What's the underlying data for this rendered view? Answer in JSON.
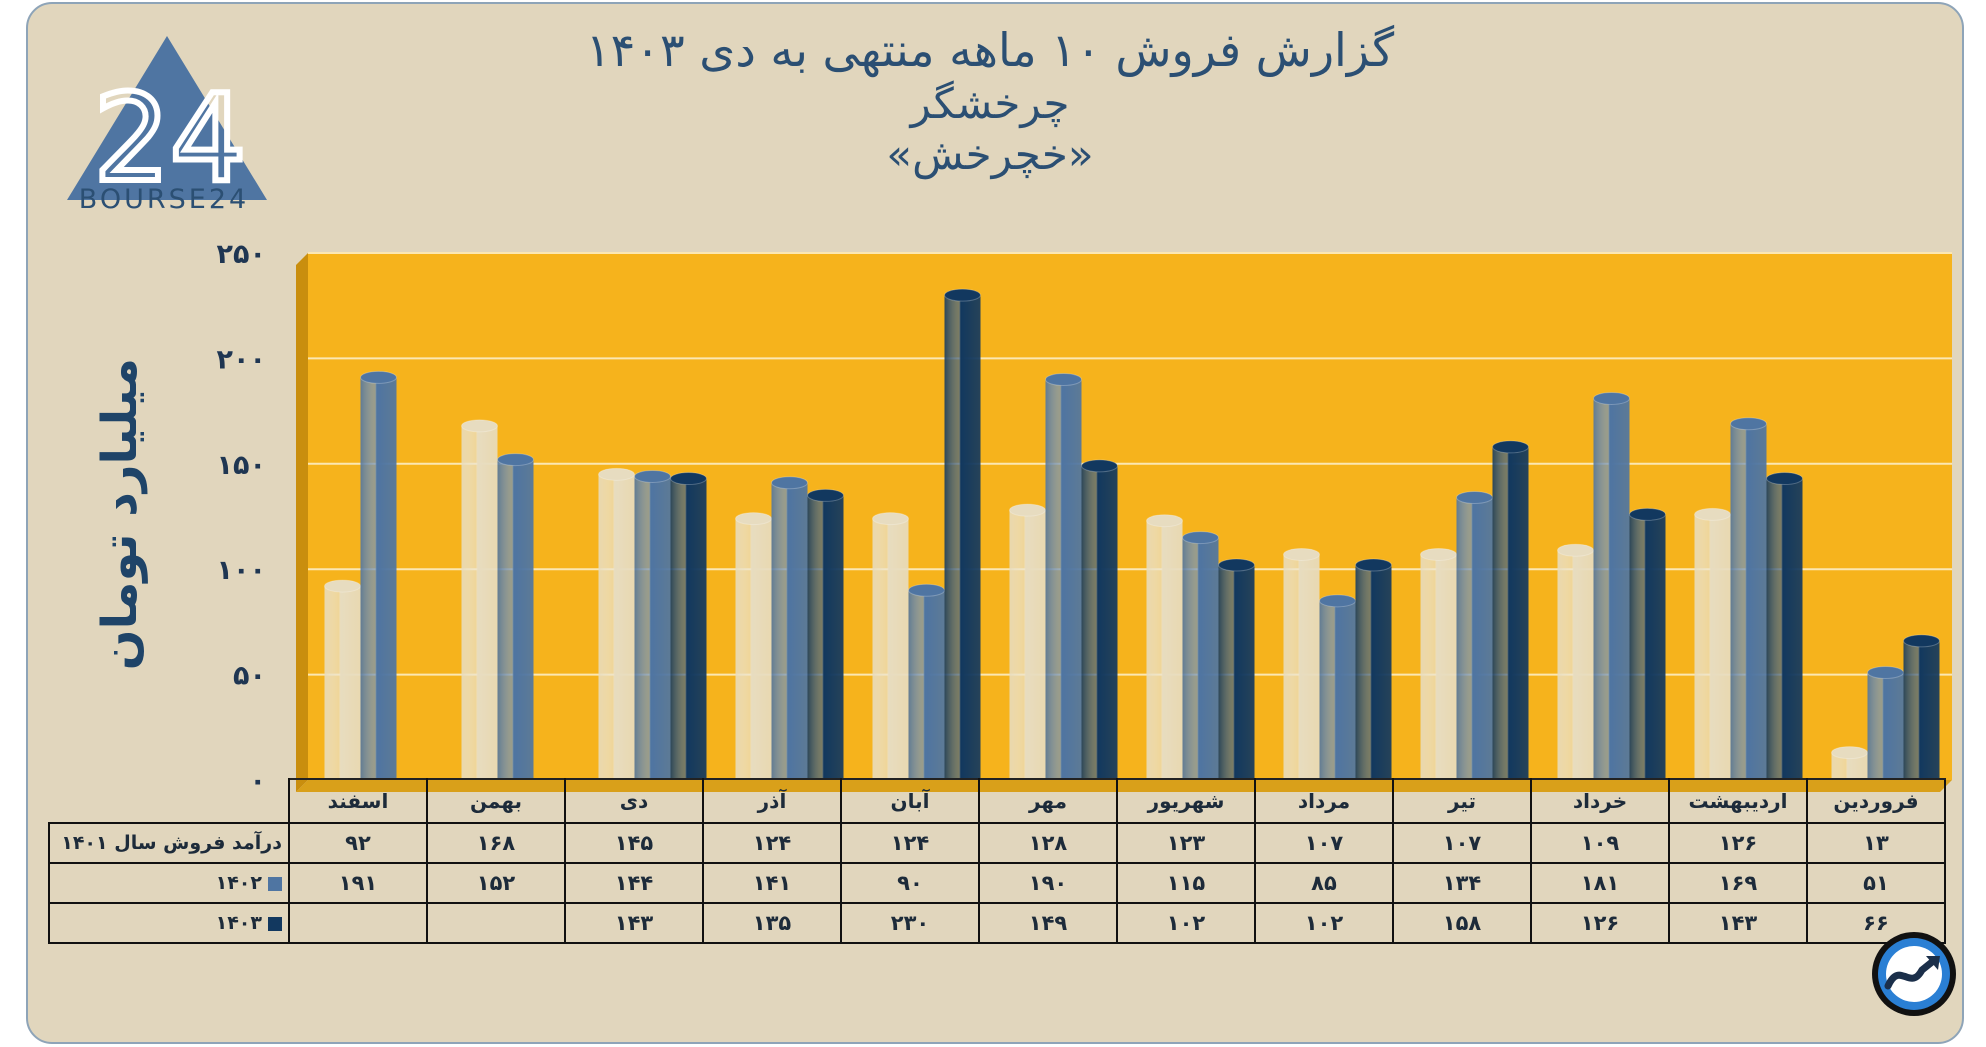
{
  "title": {
    "line1": "گزارش  فروش ۱۰ ماهه منتهی به دی ۱۴۰۳",
    "line2": "چرخشگر",
    "line3": "«خچرخش»"
  },
  "logo": {
    "text": "BOURSE24",
    "mark": "24"
  },
  "chart_data": {
    "type": "bar",
    "ylabel": "میلیارد تومان",
    "ylim": [
      0,
      250
    ],
    "yticks": [
      "۰",
      "۵۰",
      "۱۰۰",
      "۱۵۰",
      "۲۰۰",
      "۲۵۰"
    ],
    "ytick_values": [
      0,
      50,
      100,
      150,
      200,
      250
    ],
    "grid": true,
    "categories": [
      "فروردین",
      "اردیبهشت",
      "خرداد",
      "تیر",
      "مرداد",
      "شهریور",
      "مهر",
      "آبان",
      "آذر",
      "دی",
      "بهمن",
      "اسفند"
    ],
    "series": [
      {
        "name": "درآمد فروش سال ۱۴۰۱",
        "color": "#e7dcc0",
        "values": [
          13,
          126,
          109,
          107,
          107,
          123,
          128,
          124,
          124,
          145,
          168,
          92
        ],
        "labels": [
          "۱۳",
          "۱۲۶",
          "۱۰۹",
          "۱۰۷",
          "۱۰۷",
          "۱۲۳",
          "۱۲۸",
          "۱۲۴",
          "۱۲۴",
          "۱۴۵",
          "۱۶۸",
          "۹۲"
        ]
      },
      {
        "name": "۱۴۰۲",
        "color": "#4f75a2",
        "values": [
          51,
          169,
          181,
          134,
          85,
          115,
          190,
          90,
          141,
          144,
          152,
          191
        ],
        "labels": [
          "۵۱",
          "۱۶۹",
          "۱۸۱",
          "۱۳۴",
          "۸۵",
          "۱۱۵",
          "۱۹۰",
          "۹۰",
          "۱۴۱",
          "۱۴۴",
          "۱۵۲",
          "۱۹۱"
        ]
      },
      {
        "name": "۱۴۰۳",
        "color": "#12385f",
        "values": [
          66,
          143,
          126,
          158,
          102,
          102,
          149,
          230,
          135,
          143,
          null,
          null
        ],
        "labels": [
          "۶۶",
          "۱۴۳",
          "۱۲۶",
          "۱۵۸",
          "۱۰۲",
          "۱۰۲",
          "۱۴۹",
          "۲۳۰",
          "۱۳۵",
          "۱۴۳",
          "",
          ""
        ]
      }
    ]
  },
  "colors": {
    "plot_bg": "#f6b31c",
    "plot_side": "#c98e0e",
    "frame": "#e1d6bd",
    "title": "#2b4f73"
  }
}
